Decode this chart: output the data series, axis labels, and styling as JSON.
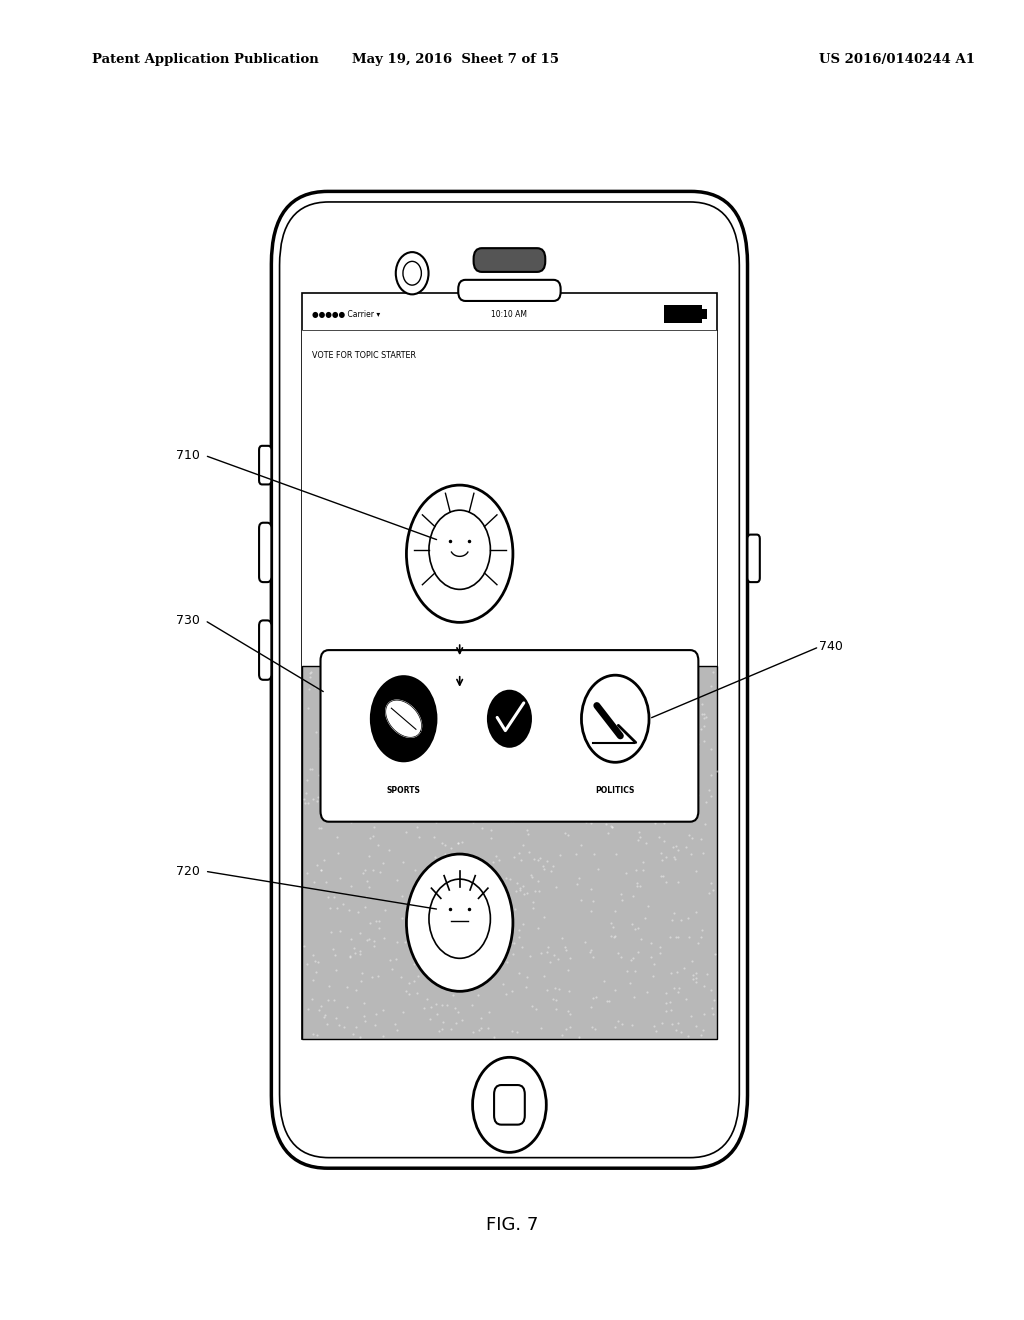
{
  "header_left": "Patent Application Publication",
  "header_mid": "May 19, 2016  Sheet 7 of 15",
  "header_right": "US 2016/0140244 A1",
  "fig_label": "FIG. 7",
  "status_bar_text": "●●●●● Carrier ▾   10:10 AM",
  "screen_title": "VOTE FOR TOPIC STARTER",
  "label_710": "710",
  "label_720": "720",
  "label_730": "730",
  "label_740": "740",
  "sports_label": "SPORTS",
  "politics_label": "POLITICS"
}
